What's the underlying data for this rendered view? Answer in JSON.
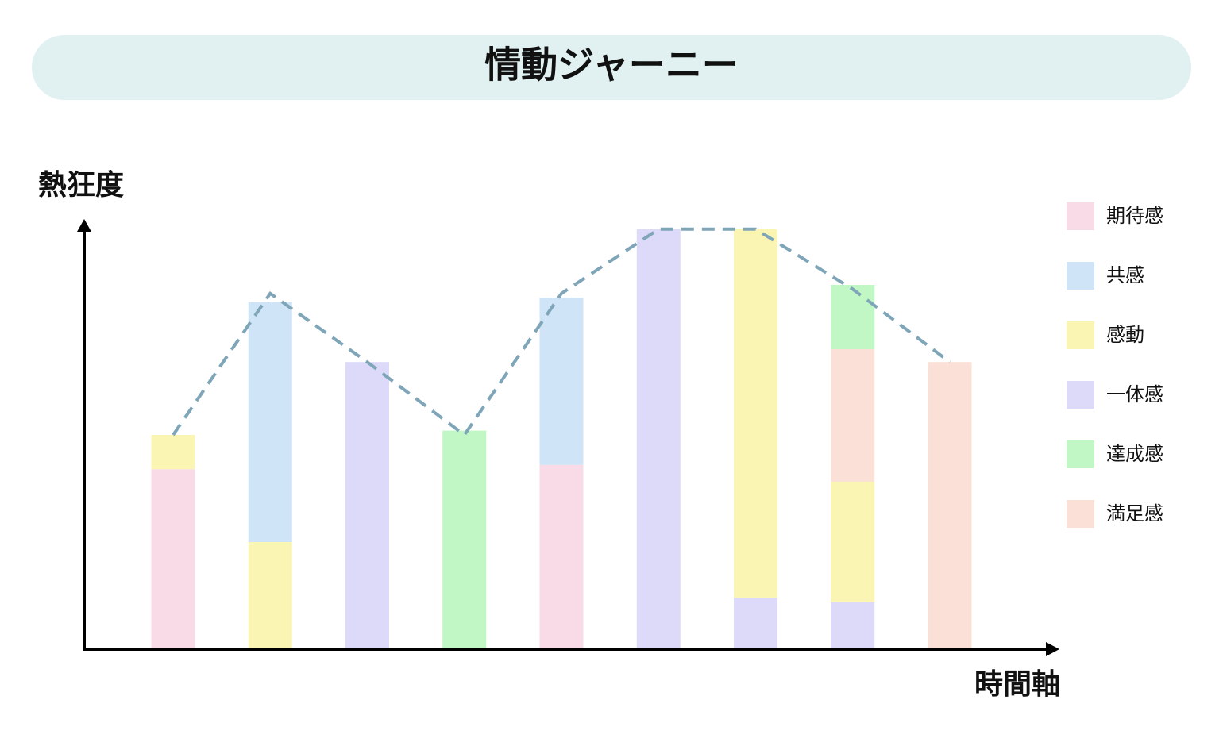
{
  "chart_data": {
    "type": "bar",
    "stacked": true,
    "title": "情動ジャーニー",
    "y_label": "熱狂度",
    "x_label": "時間軸",
    "categories": [
      null,
      null,
      null,
      null,
      null,
      null,
      null,
      null,
      null
    ],
    "ylim": [
      0,
      100
    ],
    "legend": "right",
    "series": [
      {
        "name": "期待感",
        "color": "#f8dbe6",
        "values": [
          42,
          null,
          null,
          null,
          43,
          null,
          null,
          null,
          null
        ]
      },
      {
        "name": "共感",
        "color": "#cfe4f7",
        "values": [
          null,
          56,
          null,
          null,
          39,
          null,
          null,
          null,
          null
        ]
      },
      {
        "name": "感動",
        "color": "#fbf5b4",
        "values": [
          8,
          25,
          null,
          null,
          null,
          null,
          86,
          28,
          null
        ]
      },
      {
        "name": "一体感",
        "color": "#dcdaf8",
        "values": [
          null,
          null,
          67,
          null,
          null,
          98,
          12,
          11,
          null
        ]
      },
      {
        "name": "達成感",
        "color": "#c0f7c4",
        "values": [
          null,
          null,
          null,
          51,
          null,
          null,
          null,
          15,
          null
        ]
      },
      {
        "name": "満足感",
        "color": "#fae0d6",
        "values": [
          null,
          null,
          null,
          null,
          null,
          null,
          null,
          31,
          67
        ]
      }
    ],
    "line": {
      "color": "#7fa5b8",
      "dashed": true,
      "values": [
        50,
        83,
        67,
        50,
        83,
        98,
        98,
        84,
        67
      ]
    }
  }
}
